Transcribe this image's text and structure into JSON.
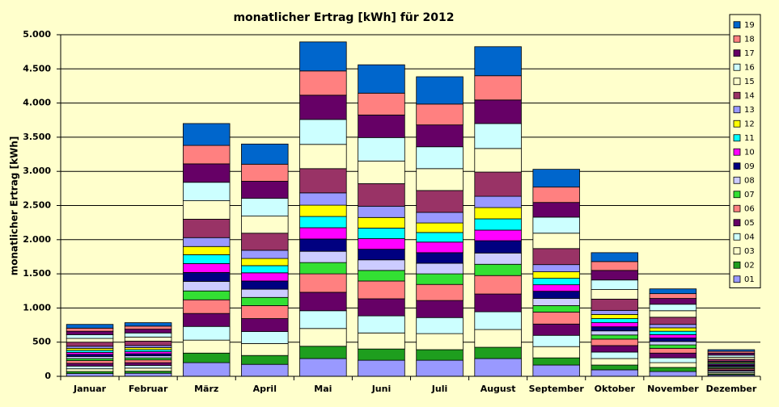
{
  "chart_data": {
    "type": "stacked_bar",
    "title": "monatlicher Ertrag [kWh] für 2012",
    "y_label": "monatlicher Ertrag [kWh]",
    "categories": [
      "Januar",
      "Februar",
      "März",
      "April",
      "Mai",
      "Juni",
      "Juli",
      "August",
      "September",
      "Oktober",
      "November",
      "Dezember"
    ],
    "ylim": [
      0,
      5000
    ],
    "yticks": [
      0,
      500,
      {
        "value": 1000,
        "label": "1.000"
      },
      {
        "value": 1500,
        "label": "1.500"
      },
      {
        "value": 2000,
        "label": "2.000"
      },
      {
        "value": 2500,
        "label": "2.500"
      },
      {
        "value": 3000,
        "label": "3.000"
      },
      {
        "value": 3500,
        "label": "3.500"
      },
      {
        "value": 4000,
        "label": "4.000"
      },
      {
        "value": 4500,
        "label": "4.500"
      },
      {
        "value": 5000,
        "label": "5.000"
      }
    ],
    "grid": true,
    "legend": "right",
    "series": [
      {
        "name": "01",
        "color": "#9999ff",
        "values": [
          40,
          45,
          200,
          175,
          260,
          235,
          235,
          260,
          165,
          95,
          70,
          20
        ]
      },
      {
        "name": "02",
        "color": "#1e9e1e",
        "values": [
          30,
          30,
          140,
          130,
          180,
          165,
          155,
          165,
          105,
          70,
          60,
          15
        ]
      },
      {
        "name": "03",
        "color": "#ffffcc",
        "values": [
          40,
          45,
          190,
          175,
          260,
          235,
          235,
          260,
          165,
          95,
          70,
          20
        ]
      },
      {
        "name": "04",
        "color": "#ccffff",
        "values": [
          40,
          40,
          200,
          175,
          260,
          250,
          235,
          260,
          165,
          95,
          70,
          20
        ]
      },
      {
        "name": "05",
        "color": "#660066",
        "values": [
          40,
          40,
          190,
          190,
          270,
          250,
          250,
          260,
          165,
          95,
          70,
          20
        ]
      },
      {
        "name": "06",
        "color": "#ff8080",
        "values": [
          40,
          40,
          200,
          190,
          270,
          260,
          235,
          270,
          175,
          95,
          70,
          20
        ]
      },
      {
        "name": "07",
        "color": "#33e033",
        "values": [
          30,
          30,
          130,
          120,
          165,
          155,
          155,
          165,
          95,
          60,
          50,
          15
        ]
      },
      {
        "name": "08",
        "color": "#ccccff",
        "values": [
          30,
          30,
          140,
          120,
          165,
          155,
          155,
          165,
          105,
          60,
          50,
          15
        ]
      },
      {
        "name": "09",
        "color": "#000080",
        "values": [
          30,
          30,
          130,
          120,
          180,
          155,
          155,
          180,
          105,
          60,
          50,
          15
        ]
      },
      {
        "name": "10",
        "color": "#ff00ff",
        "values": [
          30,
          30,
          130,
          120,
          165,
          155,
          155,
          155,
          95,
          60,
          50,
          15
        ]
      },
      {
        "name": "11",
        "color": "#00ffff",
        "values": [
          30,
          30,
          130,
          105,
          165,
          155,
          140,
          165,
          95,
          60,
          50,
          15
        ]
      },
      {
        "name": "12",
        "color": "#ffff00",
        "values": [
          30,
          30,
          120,
          105,
          165,
          155,
          140,
          165,
          95,
          60,
          50,
          15
        ]
      },
      {
        "name": "13",
        "color": "#9999ff",
        "values": [
          30,
          30,
          130,
          120,
          180,
          165,
          155,
          165,
          105,
          60,
          50,
          15
        ]
      },
      {
        "name": "14",
        "color": "#993366",
        "values": [
          60,
          65,
          270,
          250,
          355,
          330,
          320,
          355,
          235,
          165,
          105,
          30
        ]
      },
      {
        "name": "15",
        "color": "#ffffcc",
        "values": [
          55,
          60,
          270,
          250,
          355,
          330,
          320,
          345,
          225,
          140,
          95,
          30
        ]
      },
      {
        "name": "16",
        "color": "#ccffff",
        "values": [
          55,
          60,
          270,
          260,
          365,
          345,
          320,
          365,
          235,
          140,
          95,
          30
        ]
      },
      {
        "name": "17",
        "color": "#660066",
        "values": [
          50,
          55,
          270,
          250,
          355,
          330,
          320,
          345,
          215,
          140,
          85,
          30
        ]
      },
      {
        "name": "18",
        "color": "#ff8080",
        "values": [
          45,
          45,
          270,
          250,
          355,
          320,
          305,
          355,
          225,
          130,
          70,
          25
        ]
      },
      {
        "name": "19",
        "color": "#0066cc",
        "values": [
          55,
          50,
          320,
          295,
          425,
          415,
          400,
          425,
          260,
          130,
          70,
          25
        ]
      }
    ]
  }
}
